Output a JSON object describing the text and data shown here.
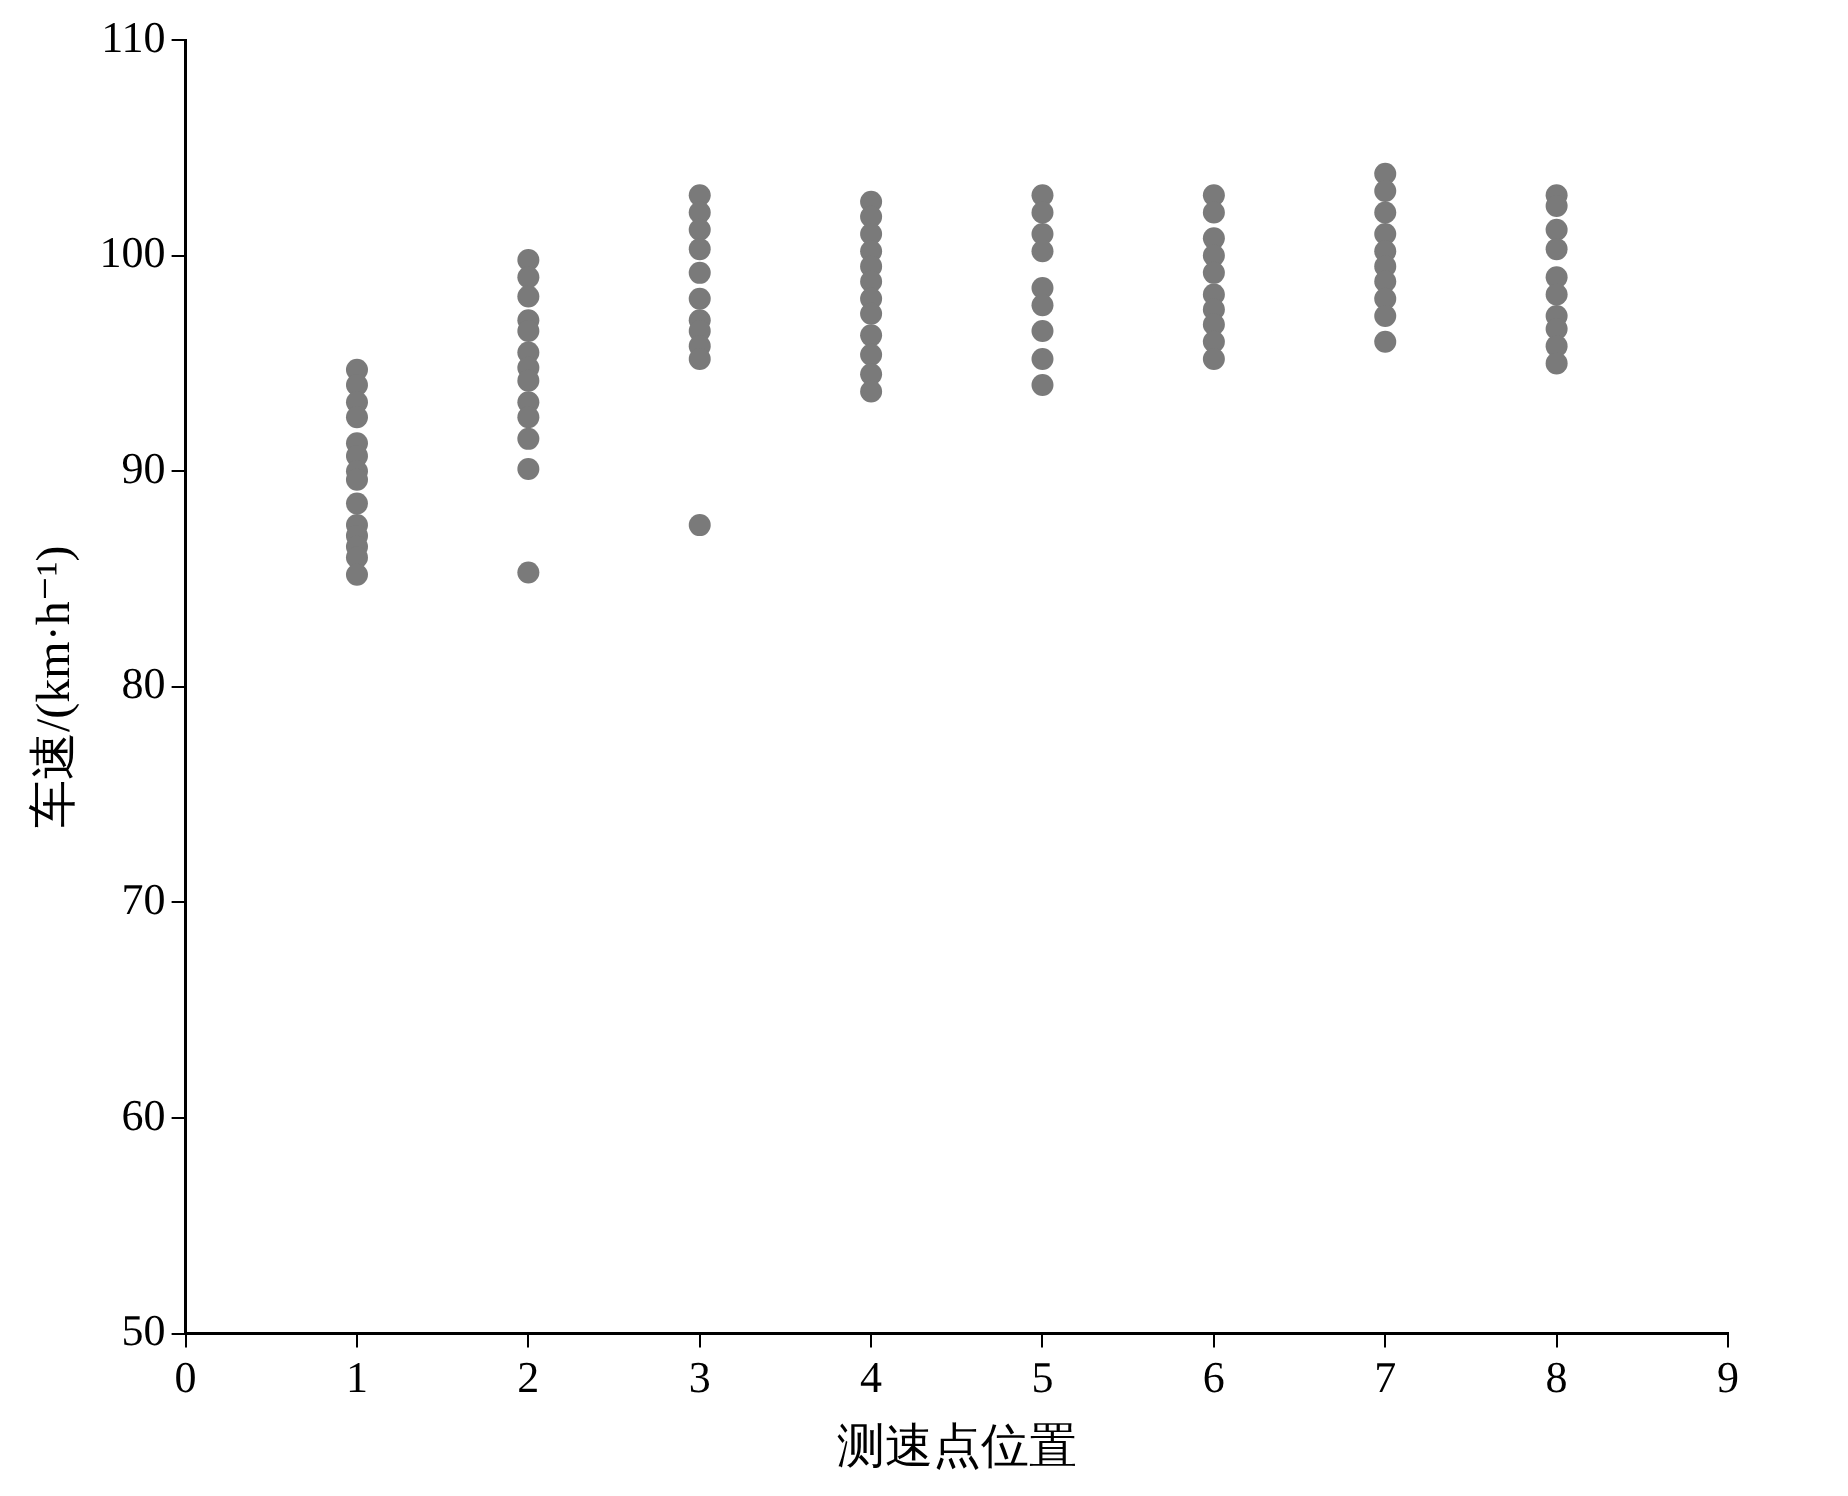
{
  "chart_data": {
    "type": "scatter",
    "xlabel": "测速点位置",
    "ylabel": "车速/(km·h⁻¹)",
    "xlim": [
      0,
      9
    ],
    "xticks": [
      0,
      1,
      2,
      3,
      4,
      5,
      6,
      7,
      8,
      9
    ],
    "ylim": [
      50,
      110
    ],
    "yticks": [
      50,
      60,
      70,
      80,
      90,
      100,
      110
    ],
    "grid": false,
    "legend": false,
    "marker": "circle",
    "series": [
      {
        "color": "#7a7a7a",
        "x": [
          1,
          1,
          1,
          1,
          1,
          1,
          1,
          1,
          1,
          1,
          1,
          1,
          1,
          1,
          2,
          2,
          2,
          2,
          2,
          2,
          2,
          2,
          2,
          2,
          2,
          2,
          2,
          3,
          3,
          3,
          3,
          3,
          3,
          3,
          3,
          3,
          3,
          3,
          4,
          4,
          4,
          4,
          4,
          4,
          4,
          4,
          4,
          4,
          4,
          4,
          5,
          5,
          5,
          5,
          5,
          5,
          5,
          5,
          5,
          6,
          6,
          6,
          6,
          6,
          6,
          6,
          6,
          6,
          6,
          7,
          7,
          7,
          7,
          7,
          7,
          7,
          7,
          7,
          7,
          8,
          8,
          8,
          8,
          8,
          8,
          8,
          8,
          8,
          8
        ],
        "values": [
          94.7,
          94.0,
          93.2,
          92.5,
          91.3,
          90.7,
          90.0,
          89.6,
          88.5,
          87.5,
          87.0,
          86.5,
          86.0,
          85.2,
          99.8,
          99.0,
          98.1,
          97.0,
          96.5,
          95.5,
          94.8,
          94.2,
          93.2,
          92.5,
          91.5,
          90.1,
          85.3,
          102.8,
          102.0,
          101.2,
          100.3,
          99.2,
          98.0,
          97.0,
          96.5,
          95.8,
          95.2,
          87.5,
          102.5,
          101.8,
          101.0,
          100.2,
          99.5,
          98.8,
          98.0,
          97.3,
          96.3,
          95.4,
          94.5,
          93.7,
          102.8,
          102.0,
          101.0,
          100.2,
          98.5,
          97.7,
          96.5,
          95.2,
          94.0,
          102.8,
          102.0,
          100.8,
          100.0,
          99.2,
          98.2,
          97.5,
          96.8,
          96.0,
          95.2,
          103.8,
          103.0,
          102.0,
          101.0,
          100.2,
          99.5,
          98.8,
          98.0,
          97.2,
          96.0,
          102.8,
          102.3,
          101.2,
          100.3,
          99.0,
          98.2,
          97.2,
          96.6,
          95.8,
          95.0
        ]
      }
    ]
  }
}
